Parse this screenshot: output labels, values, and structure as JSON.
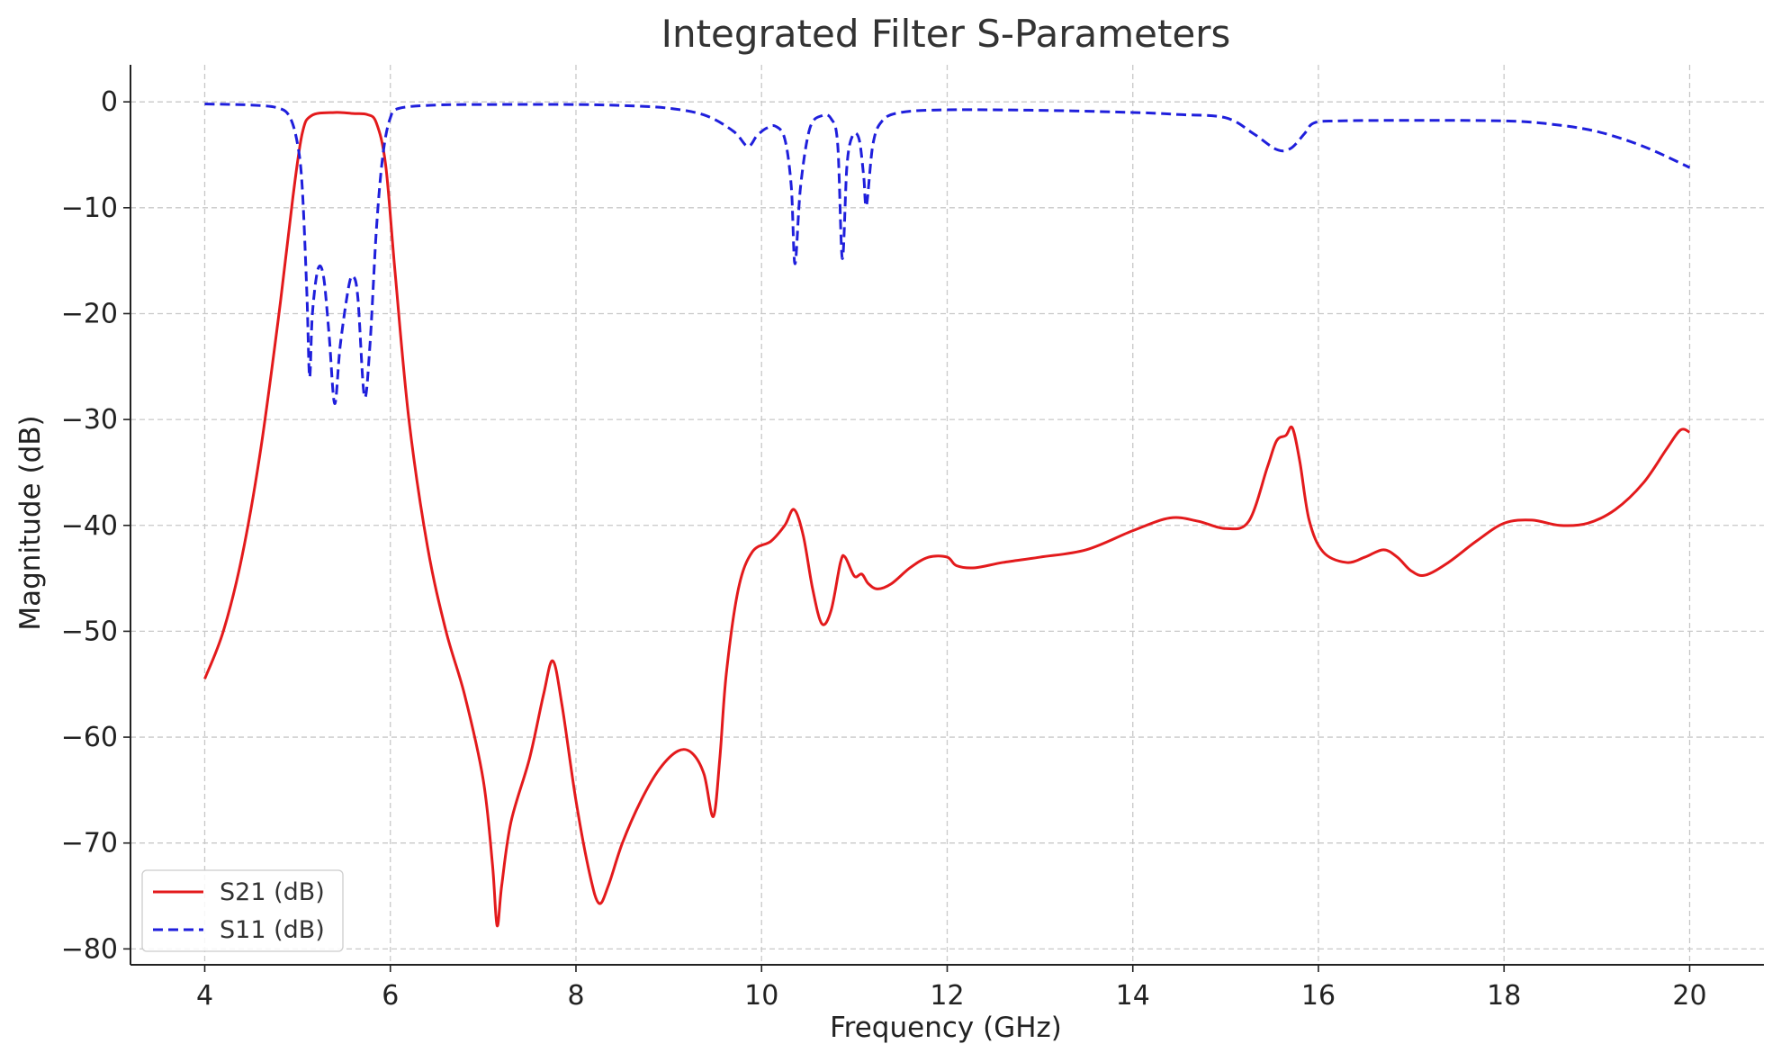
{
  "chart_data": {
    "type": "line",
    "title": "Integrated Filter S-Parameters",
    "xlabel": "Frequency (GHz)",
    "ylabel": "Magnitude (dB)",
    "xlim": [
      3.2,
      20.8
    ],
    "ylim": [
      -81.5,
      3.5
    ],
    "xticks": [
      4,
      6,
      8,
      10,
      12,
      14,
      16,
      18,
      20
    ],
    "yticks": [
      0,
      -10,
      -20,
      -30,
      -40,
      -50,
      -60,
      -70,
      -80
    ],
    "grid": true,
    "legend_position": "lower-left",
    "series": [
      {
        "name": "S21 (dB)",
        "color": "#e31a1c",
        "dash": "solid",
        "points": [
          [
            4.0,
            -54.5
          ],
          [
            4.2,
            -50
          ],
          [
            4.4,
            -43
          ],
          [
            4.6,
            -33
          ],
          [
            4.8,
            -20
          ],
          [
            4.95,
            -9
          ],
          [
            5.05,
            -3
          ],
          [
            5.15,
            -1.3
          ],
          [
            5.4,
            -1.0
          ],
          [
            5.6,
            -1.1
          ],
          [
            5.75,
            -1.2
          ],
          [
            5.85,
            -2
          ],
          [
            5.95,
            -6
          ],
          [
            6.05,
            -16
          ],
          [
            6.2,
            -30
          ],
          [
            6.4,
            -42
          ],
          [
            6.6,
            -50
          ],
          [
            6.8,
            -56
          ],
          [
            7.0,
            -64
          ],
          [
            7.1,
            -72
          ],
          [
            7.15,
            -77.8
          ],
          [
            7.2,
            -74
          ],
          [
            7.3,
            -68
          ],
          [
            7.5,
            -62
          ],
          [
            7.65,
            -56
          ],
          [
            7.75,
            -52.8
          ],
          [
            7.85,
            -57
          ],
          [
            8.0,
            -66
          ],
          [
            8.15,
            -73
          ],
          [
            8.25,
            -75.7
          ],
          [
            8.35,
            -74
          ],
          [
            8.5,
            -70
          ],
          [
            8.7,
            -66
          ],
          [
            8.9,
            -63
          ],
          [
            9.1,
            -61.3
          ],
          [
            9.25,
            -61.5
          ],
          [
            9.38,
            -63.5
          ],
          [
            9.48,
            -67.5
          ],
          [
            9.55,
            -62
          ],
          [
            9.62,
            -54
          ],
          [
            9.75,
            -46
          ],
          [
            9.9,
            -42.5
          ],
          [
            10.1,
            -41.5
          ],
          [
            10.25,
            -40
          ],
          [
            10.35,
            -38.5
          ],
          [
            10.45,
            -41
          ],
          [
            10.55,
            -46
          ],
          [
            10.65,
            -49.3
          ],
          [
            10.75,
            -48
          ],
          [
            10.85,
            -43.5
          ],
          [
            10.9,
            -43
          ],
          [
            11.0,
            -44.8
          ],
          [
            11.08,
            -44.6
          ],
          [
            11.15,
            -45.5
          ],
          [
            11.25,
            -46
          ],
          [
            11.4,
            -45.5
          ],
          [
            11.6,
            -44
          ],
          [
            11.8,
            -43
          ],
          [
            12.0,
            -43
          ],
          [
            12.1,
            -43.8
          ],
          [
            12.3,
            -44
          ],
          [
            12.6,
            -43.5
          ],
          [
            13.0,
            -43
          ],
          [
            13.5,
            -42.3
          ],
          [
            14.0,
            -40.5
          ],
          [
            14.4,
            -39.3
          ],
          [
            14.7,
            -39.6
          ],
          [
            15.0,
            -40.3
          ],
          [
            15.25,
            -39.6
          ],
          [
            15.45,
            -34.5
          ],
          [
            15.55,
            -32
          ],
          [
            15.65,
            -31.5
          ],
          [
            15.72,
            -30.8
          ],
          [
            15.8,
            -34
          ],
          [
            15.9,
            -39.5
          ],
          [
            16.05,
            -42.5
          ],
          [
            16.3,
            -43.5
          ],
          [
            16.5,
            -43
          ],
          [
            16.7,
            -42.3
          ],
          [
            16.85,
            -43
          ],
          [
            17.0,
            -44.3
          ],
          [
            17.15,
            -44.7
          ],
          [
            17.4,
            -43.5
          ],
          [
            17.7,
            -41.5
          ],
          [
            18.0,
            -39.8
          ],
          [
            18.3,
            -39.5
          ],
          [
            18.6,
            -40
          ],
          [
            18.9,
            -39.8
          ],
          [
            19.2,
            -38.5
          ],
          [
            19.5,
            -36
          ],
          [
            19.75,
            -32.8
          ],
          [
            19.9,
            -31
          ],
          [
            20.0,
            -31.2
          ]
        ]
      },
      {
        "name": "S11 (dB)",
        "color": "#1f1fdc",
        "dash": "dashed",
        "points": [
          [
            4.0,
            -0.2
          ],
          [
            4.5,
            -0.3
          ],
          [
            4.8,
            -0.6
          ],
          [
            4.92,
            -1.5
          ],
          [
            5.0,
            -4
          ],
          [
            5.05,
            -8
          ],
          [
            5.1,
            -18
          ],
          [
            5.13,
            -26
          ],
          [
            5.16,
            -20
          ],
          [
            5.22,
            -15.8
          ],
          [
            5.28,
            -16.5
          ],
          [
            5.34,
            -22
          ],
          [
            5.4,
            -28.5
          ],
          [
            5.46,
            -23
          ],
          [
            5.55,
            -17.5
          ],
          [
            5.6,
            -16.5
          ],
          [
            5.65,
            -18.5
          ],
          [
            5.72,
            -27.8
          ],
          [
            5.78,
            -23
          ],
          [
            5.85,
            -12
          ],
          [
            5.92,
            -5
          ],
          [
            6.0,
            -1.5
          ],
          [
            6.1,
            -0.6
          ],
          [
            6.5,
            -0.3
          ],
          [
            7.0,
            -0.25
          ],
          [
            8.0,
            -0.25
          ],
          [
            8.5,
            -0.35
          ],
          [
            9.0,
            -0.6
          ],
          [
            9.4,
            -1.3
          ],
          [
            9.7,
            -2.8
          ],
          [
            9.85,
            -4.2
          ],
          [
            9.95,
            -3.2
          ],
          [
            10.05,
            -2.5
          ],
          [
            10.15,
            -2.3
          ],
          [
            10.25,
            -3.5
          ],
          [
            10.32,
            -8
          ],
          [
            10.36,
            -15.3
          ],
          [
            10.42,
            -8
          ],
          [
            10.52,
            -2.5
          ],
          [
            10.65,
            -1.3
          ],
          [
            10.75,
            -1.6
          ],
          [
            10.82,
            -4
          ],
          [
            10.87,
            -14.8
          ],
          [
            10.92,
            -6
          ],
          [
            10.98,
            -3.2
          ],
          [
            11.05,
            -3.5
          ],
          [
            11.1,
            -7
          ],
          [
            11.13,
            -9.8
          ],
          [
            11.2,
            -4
          ],
          [
            11.3,
            -1.8
          ],
          [
            11.5,
            -1.0
          ],
          [
            12.0,
            -0.75
          ],
          [
            13.0,
            -0.8
          ],
          [
            14.0,
            -1.0
          ],
          [
            14.5,
            -1.2
          ],
          [
            15.0,
            -1.5
          ],
          [
            15.3,
            -3
          ],
          [
            15.55,
            -4.5
          ],
          [
            15.7,
            -4.4
          ],
          [
            15.85,
            -3
          ],
          [
            15.95,
            -2
          ],
          [
            16.2,
            -1.8
          ],
          [
            17.0,
            -1.75
          ],
          [
            18.0,
            -1.8
          ],
          [
            18.5,
            -2.1
          ],
          [
            19.0,
            -2.8
          ],
          [
            19.5,
            -4.2
          ],
          [
            20.0,
            -6.2
          ]
        ]
      }
    ]
  }
}
